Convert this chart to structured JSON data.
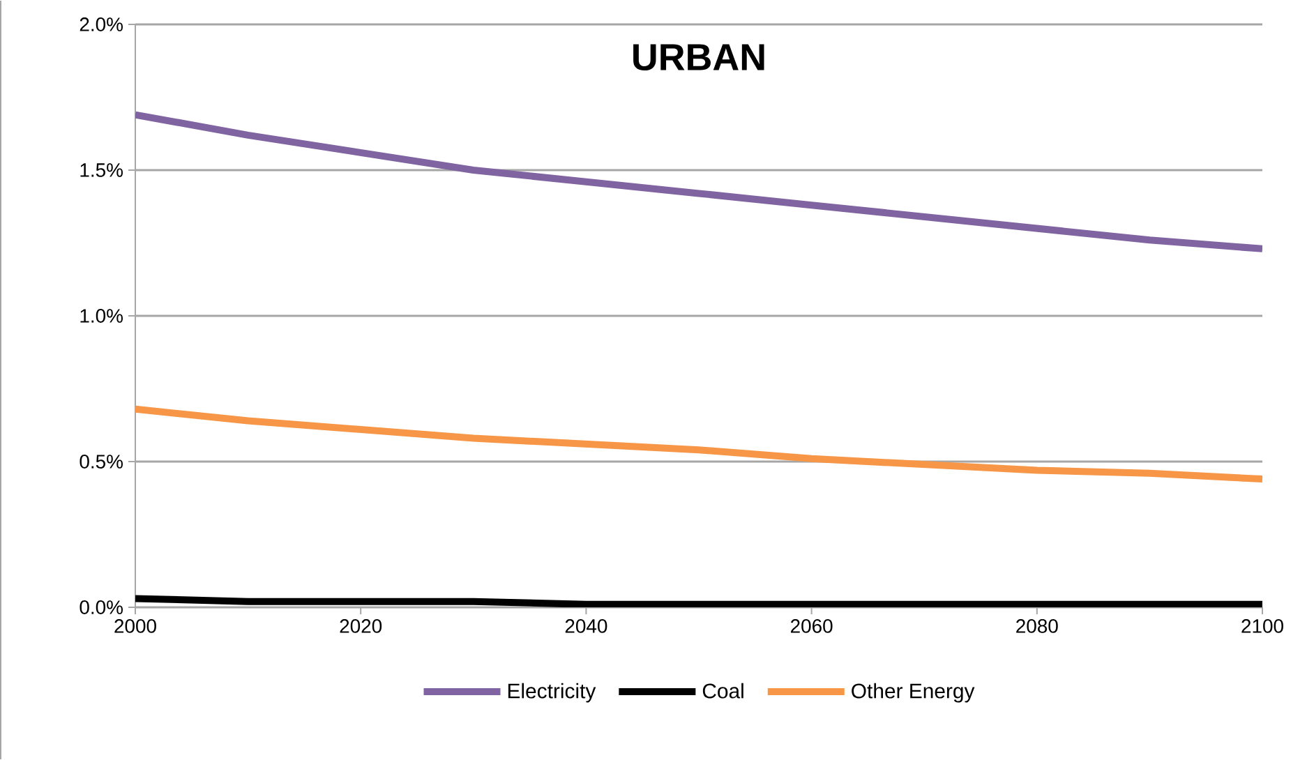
{
  "chart_data": {
    "type": "line",
    "title": "URBAN",
    "x": [
      2000,
      2010,
      2020,
      2030,
      2040,
      2050,
      2060,
      2070,
      2080,
      2090,
      2100
    ],
    "series": [
      {
        "name": "Electricity",
        "color": "#8064a2",
        "values": [
          1.69,
          1.62,
          1.56,
          1.5,
          1.46,
          1.42,
          1.38,
          1.34,
          1.3,
          1.26,
          1.23
        ]
      },
      {
        "name": "Coal",
        "color": "#000000",
        "values": [
          0.03,
          0.02,
          0.02,
          0.02,
          0.01,
          0.01,
          0.01,
          0.01,
          0.01,
          0.01,
          0.01
        ]
      },
      {
        "name": "Other Energy",
        "color": "#f79646",
        "values": [
          0.68,
          0.64,
          0.61,
          0.58,
          0.56,
          0.54,
          0.51,
          0.49,
          0.47,
          0.46,
          0.44
        ]
      }
    ],
    "xlim": [
      2000,
      2100
    ],
    "xticks": [
      2000,
      2020,
      2040,
      2060,
      2080,
      2100
    ],
    "ylim": [
      0,
      2.0
    ],
    "yticks": [
      {
        "value": 0,
        "label": "0.0%"
      },
      {
        "value": 0.5,
        "label": "0.5%"
      },
      {
        "value": 1.0,
        "label": "1.0%"
      },
      {
        "value": 1.5,
        "label": "1.5%"
      },
      {
        "value": 2.0,
        "label": "2.0%"
      }
    ],
    "grid": "y",
    "legend": "bottom",
    "marker": "none",
    "line_style": "solid"
  }
}
